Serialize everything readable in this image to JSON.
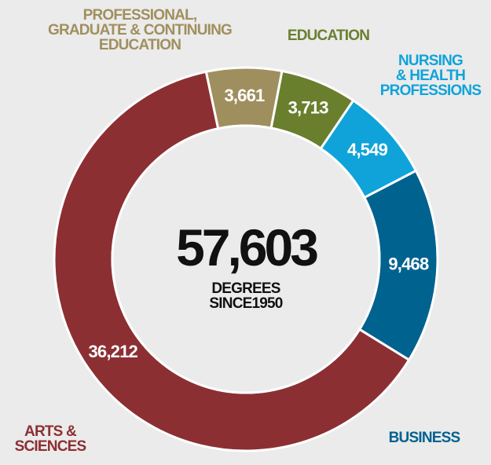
{
  "chart_data": {
    "type": "donut",
    "categories": [
      "PROFESSIONAL,\nGRADUATE & CONTINUING\nEDUCATION",
      "EDUCATION",
      "NURSING\n& HEALTH\nPROFESSIONS",
      "BUSINESS",
      "ARTS &\nSCIENCES"
    ],
    "values": [
      3661,
      3713,
      4549,
      9468,
      36212
    ],
    "value_labels": [
      "3,661",
      "3,713",
      "4,549",
      "9,468",
      "36,212"
    ],
    "colors": [
      "#a08f5e",
      "#6a7f2e",
      "#0fa3da",
      "#00628f",
      "#8c2f33"
    ],
    "center_value": "57,603",
    "center_text": "DEGREES\nSINCE1950"
  }
}
